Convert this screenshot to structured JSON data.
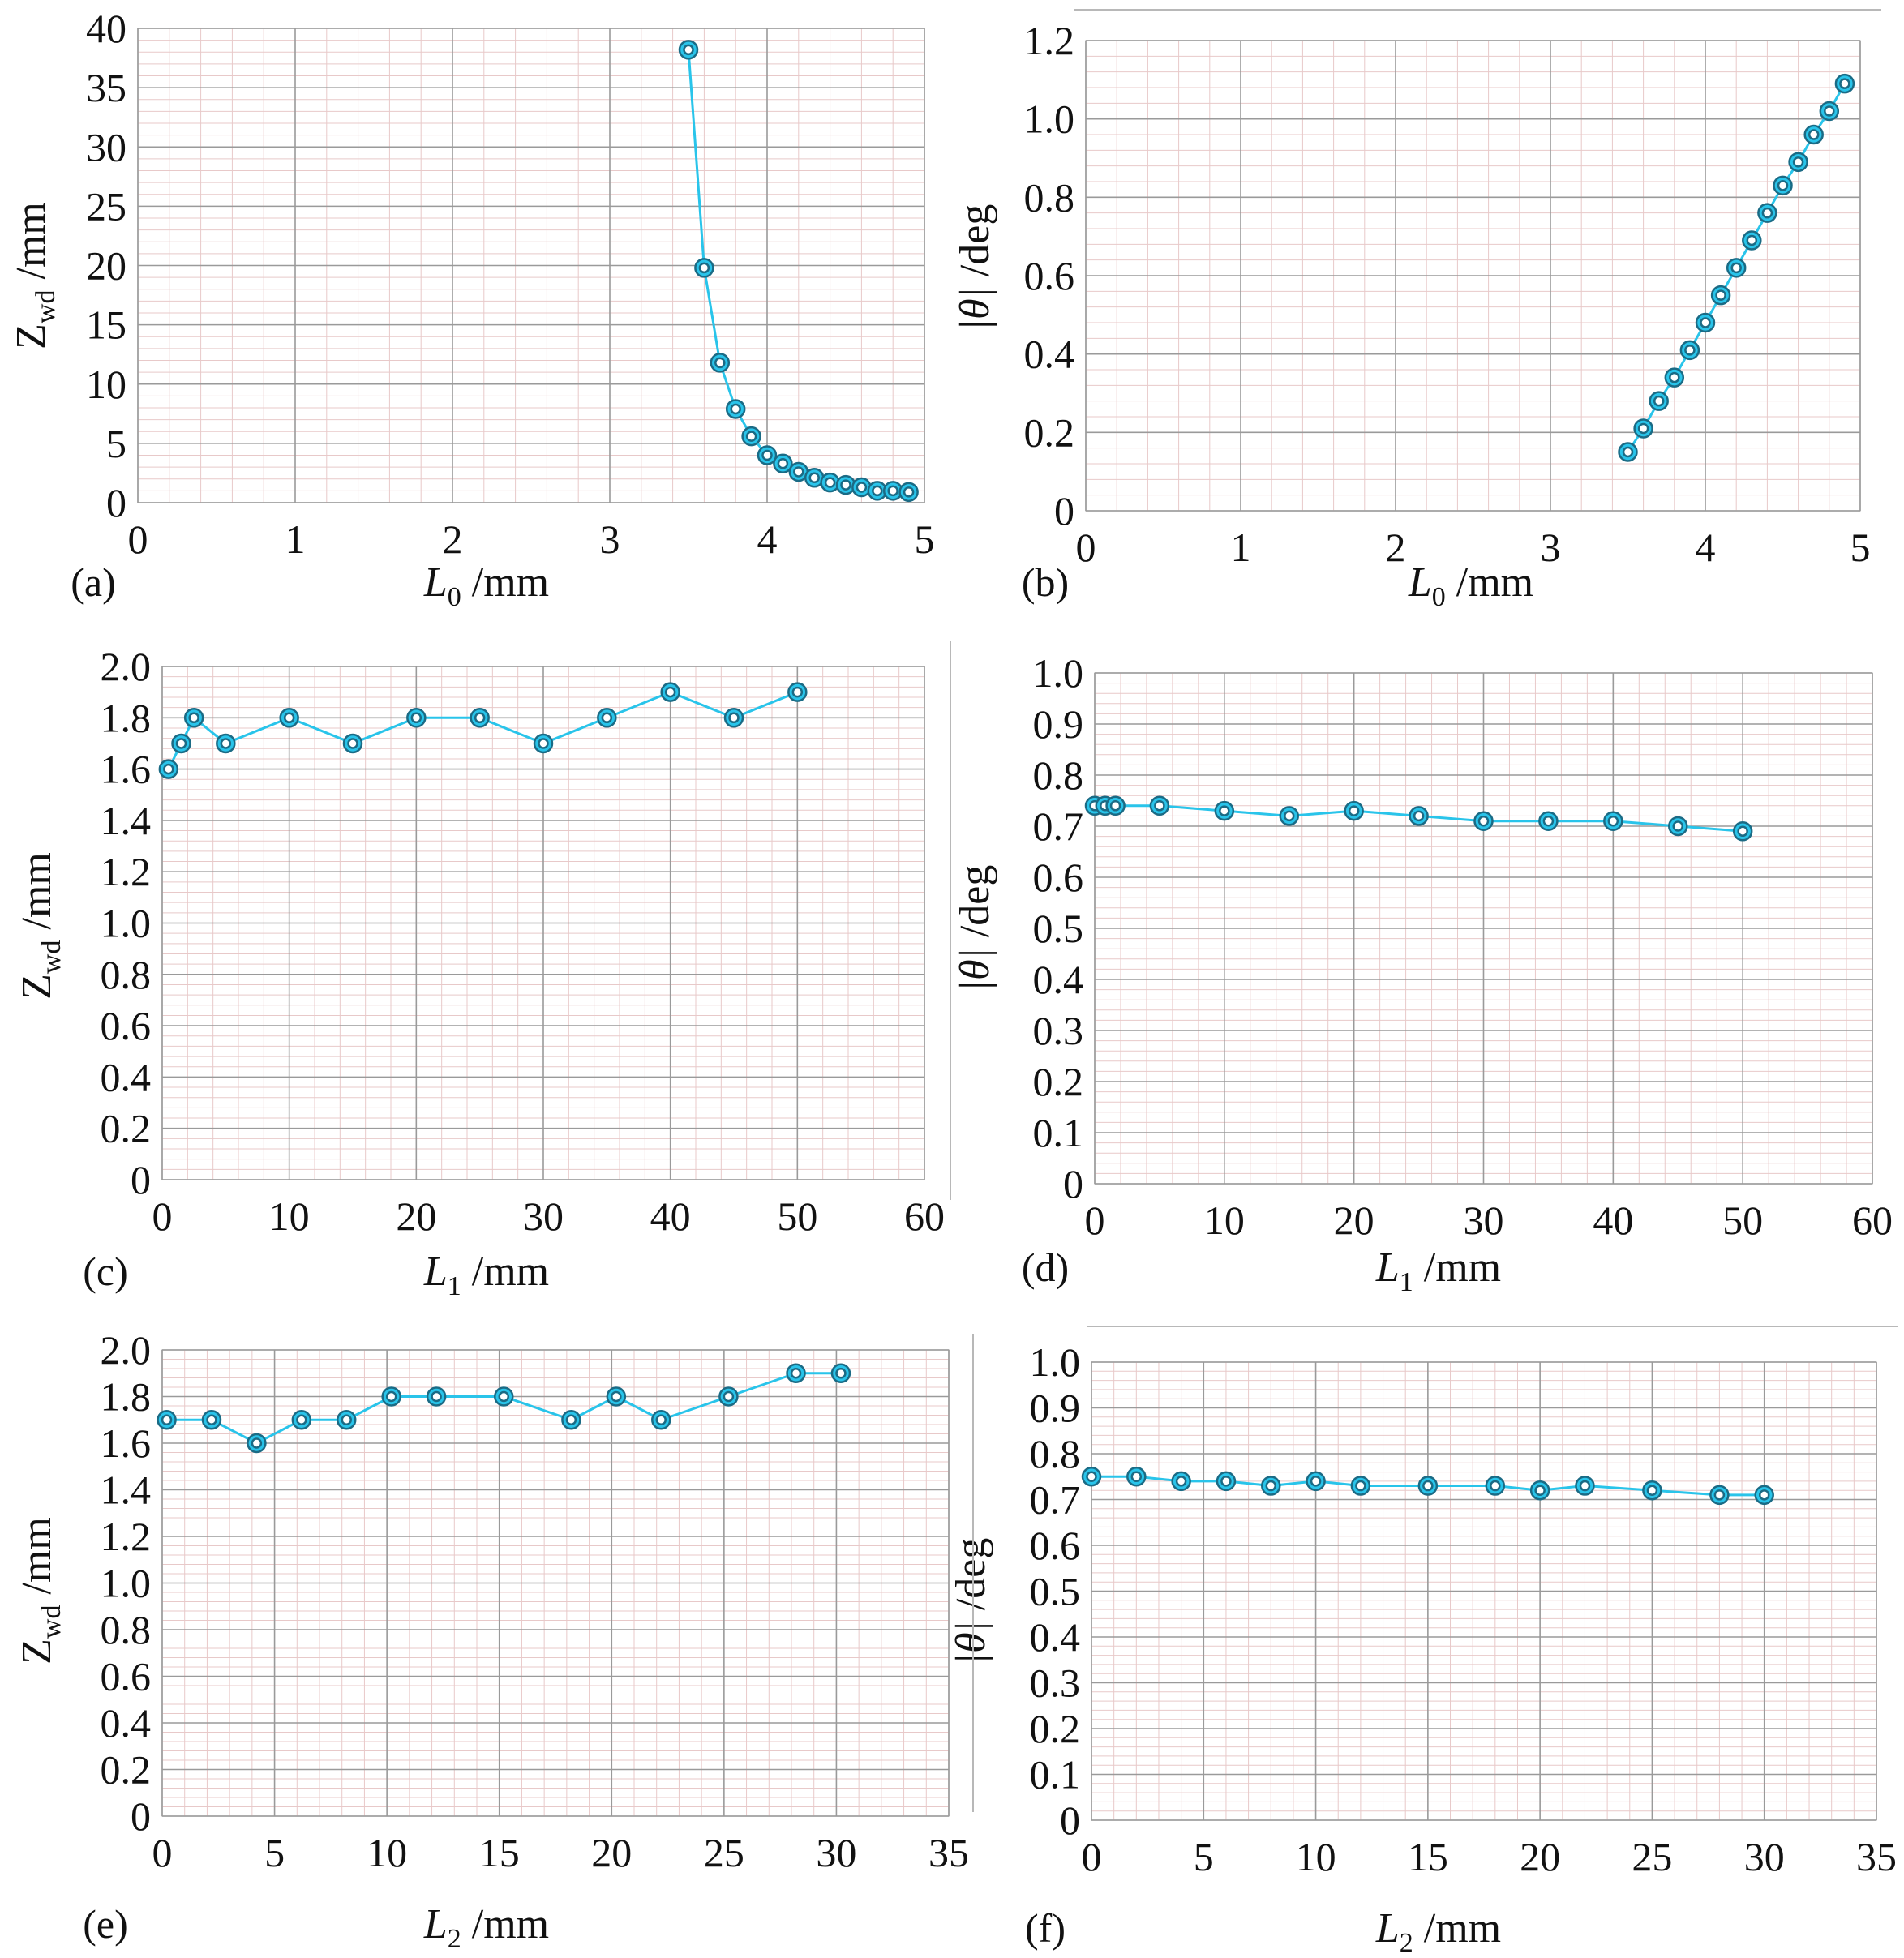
{
  "figure": {
    "description_labels": [
      "(a)",
      "(b)",
      "(c)",
      "(d)",
      "(e)",
      "(f)"
    ]
  },
  "style": {
    "line_color": "#29c4ea",
    "marker_edge": "#1b6b85",
    "grid_major": "#9a9a9a",
    "grid_minor": "#e8c9c9"
  },
  "chart_data": [
    {
      "id": "a",
      "panel_label": "(a)",
      "type": "line",
      "xlabel": {
        "main": "L",
        "sub": "0",
        "unit": " /mm"
      },
      "ylabel": {
        "main": "Z",
        "sub": "wd",
        "unit": " /mm"
      },
      "xlim": [
        0,
        5
      ],
      "ylim": [
        0,
        40
      ],
      "xticks": [
        0,
        1,
        2,
        3,
        4,
        5
      ],
      "xtick_labels": [
        "0",
        "1",
        "2",
        "3",
        "4",
        "5"
      ],
      "yticks": [
        0,
        5,
        10,
        15,
        20,
        25,
        30,
        35,
        40
      ],
      "ytick_labels": [
        "0",
        "5",
        "10",
        "15",
        "20",
        "25",
        "30",
        "35",
        "40"
      ],
      "x": [
        3.5,
        3.6,
        3.7,
        3.8,
        3.9,
        4.0,
        4.1,
        4.2,
        4.3,
        4.4,
        4.5,
        4.6,
        4.7,
        4.8,
        4.9
      ],
      "y": [
        38.2,
        19.8,
        11.8,
        7.9,
        5.6,
        4.0,
        3.3,
        2.6,
        2.1,
        1.7,
        1.5,
        1.3,
        1.0,
        1.0,
        0.9
      ]
    },
    {
      "id": "b",
      "panel_label": "(b)",
      "type": "line",
      "xlabel": {
        "main": "L",
        "sub": "0",
        "unit": " /mm"
      },
      "ylabel": {
        "main": "|θ|",
        "sub": "",
        "unit": " /deg"
      },
      "xlim": [
        0,
        5
      ],
      "ylim": [
        0,
        1.2
      ],
      "xticks": [
        0,
        1,
        2,
        3,
        4,
        5
      ],
      "xtick_labels": [
        "0",
        "1",
        "2",
        "3",
        "4",
        "5"
      ],
      "yticks": [
        0,
        0.2,
        0.4,
        0.6,
        0.8,
        1.0,
        1.2
      ],
      "ytick_labels": [
        "0",
        "0.2",
        "0.4",
        "0.6",
        "0.8",
        "1.0",
        "1.2"
      ],
      "x": [
        3.5,
        3.6,
        3.7,
        3.8,
        3.9,
        4.0,
        4.1,
        4.2,
        4.3,
        4.4,
        4.5,
        4.6,
        4.7,
        4.8,
        4.9
      ],
      "y": [
        0.15,
        0.21,
        0.28,
        0.34,
        0.41,
        0.48,
        0.55,
        0.62,
        0.69,
        0.76,
        0.83,
        0.89,
        0.96,
        1.02,
        1.09
      ]
    },
    {
      "id": "c",
      "panel_label": "(c)",
      "type": "line",
      "xlabel": {
        "main": "L",
        "sub": "1",
        "unit": " /mm"
      },
      "ylabel": {
        "main": "Z",
        "sub": "wd",
        "unit": " /mm"
      },
      "xlim": [
        0,
        60
      ],
      "ylim": [
        0,
        2.0
      ],
      "xticks": [
        0,
        10,
        20,
        30,
        40,
        50,
        60
      ],
      "xtick_labels": [
        "0",
        "10",
        "20",
        "30",
        "40",
        "50",
        "60"
      ],
      "yticks": [
        0,
        0.2,
        0.4,
        0.6,
        0.8,
        1.0,
        1.2,
        1.4,
        1.6,
        1.8,
        2.0
      ],
      "ytick_labels": [
        "0",
        "0.2",
        "0.4",
        "0.6",
        "0.8",
        "1.0",
        "1.2",
        "1.4",
        "1.6",
        "1.8",
        "2.0"
      ],
      "x": [
        0.5,
        1.5,
        2.5,
        5,
        10,
        15,
        20,
        25,
        30,
        35,
        40,
        45,
        50
      ],
      "y": [
        1.6,
        1.7,
        1.8,
        1.7,
        1.8,
        1.7,
        1.8,
        1.8,
        1.7,
        1.8,
        1.9,
        1.8,
        1.9
      ]
    },
    {
      "id": "d",
      "panel_label": "(d)",
      "type": "line",
      "xlabel": {
        "main": "L",
        "sub": "1",
        "unit": " /mm"
      },
      "ylabel": {
        "main": "|θ|",
        "sub": "",
        "unit": " /deg"
      },
      "xlim": [
        0,
        60
      ],
      "ylim": [
        0,
        1.0
      ],
      "xticks": [
        0,
        10,
        20,
        30,
        40,
        50,
        60
      ],
      "xtick_labels": [
        "0",
        "10",
        "20",
        "30",
        "40",
        "50",
        "60"
      ],
      "yticks": [
        0,
        0.1,
        0.2,
        0.3,
        0.4,
        0.5,
        0.6,
        0.7,
        0.8,
        0.9,
        1.0
      ],
      "ytick_labels": [
        "0",
        "0.1",
        "0.2",
        "0.3",
        "0.4",
        "0.5",
        "0.6",
        "0.7",
        "0.8",
        "0.9",
        "1.0"
      ],
      "x": [
        0,
        0.8,
        1.6,
        5,
        10,
        15,
        20,
        25,
        30,
        35,
        40,
        45,
        50
      ],
      "y": [
        0.74,
        0.74,
        0.74,
        0.74,
        0.73,
        0.72,
        0.73,
        0.72,
        0.71,
        0.71,
        0.71,
        0.7,
        0.69
      ]
    },
    {
      "id": "e",
      "panel_label": "(e)",
      "type": "line",
      "xlabel": {
        "main": "L",
        "sub": "2",
        "unit": " /mm"
      },
      "ylabel": {
        "main": "Z",
        "sub": "wd",
        "unit": " /mm"
      },
      "xlim": [
        0,
        35
      ],
      "ylim": [
        0,
        2.0
      ],
      "xticks": [
        0,
        5,
        10,
        15,
        20,
        25,
        30,
        35
      ],
      "xtick_labels": [
        "0",
        "5",
        "10",
        "15",
        "20",
        "25",
        "30",
        "35"
      ],
      "yticks": [
        0,
        0.2,
        0.4,
        0.6,
        0.8,
        1.0,
        1.2,
        1.4,
        1.6,
        1.8,
        2.0
      ],
      "ytick_labels": [
        "0",
        "0.2",
        "0.4",
        "0.6",
        "0.8",
        "1.0",
        "1.2",
        "1.4",
        "1.6",
        "1.8",
        "2.0"
      ],
      "x": [
        0.2,
        2.2,
        4.2,
        6.2,
        8.2,
        10.2,
        12.2,
        15.2,
        18.2,
        20.2,
        22.2,
        25.2,
        28.2,
        30.2
      ],
      "y": [
        1.7,
        1.7,
        1.6,
        1.7,
        1.7,
        1.8,
        1.8,
        1.8,
        1.7,
        1.8,
        1.7,
        1.8,
        1.9,
        1.9
      ]
    },
    {
      "id": "f",
      "panel_label": "(f)",
      "type": "line",
      "xlabel": {
        "main": "L",
        "sub": "2",
        "unit": " /mm"
      },
      "ylabel": {
        "main": "|θ|",
        "sub": "",
        "unit": " /deg"
      },
      "xlim": [
        0,
        35
      ],
      "ylim": [
        0,
        1.0
      ],
      "xticks": [
        0,
        5,
        10,
        15,
        20,
        25,
        30,
        35
      ],
      "xtick_labels": [
        "0",
        "5",
        "10",
        "15",
        "20",
        "25",
        "30",
        "35"
      ],
      "yticks": [
        0,
        0.1,
        0.2,
        0.3,
        0.4,
        0.5,
        0.6,
        0.7,
        0.8,
        0.9,
        1.0
      ],
      "ytick_labels": [
        "0",
        "0.1",
        "0.2",
        "0.3",
        "0.4",
        "0.5",
        "0.6",
        "0.7",
        "0.8",
        "0.9",
        "1.0"
      ],
      "x": [
        0,
        2,
        4,
        6,
        8,
        10,
        12,
        15,
        18,
        20,
        22,
        25,
        28,
        30
      ],
      "y": [
        0.75,
        0.75,
        0.74,
        0.74,
        0.73,
        0.74,
        0.73,
        0.73,
        0.73,
        0.72,
        0.73,
        0.72,
        0.71,
        0.71
      ]
    }
  ]
}
